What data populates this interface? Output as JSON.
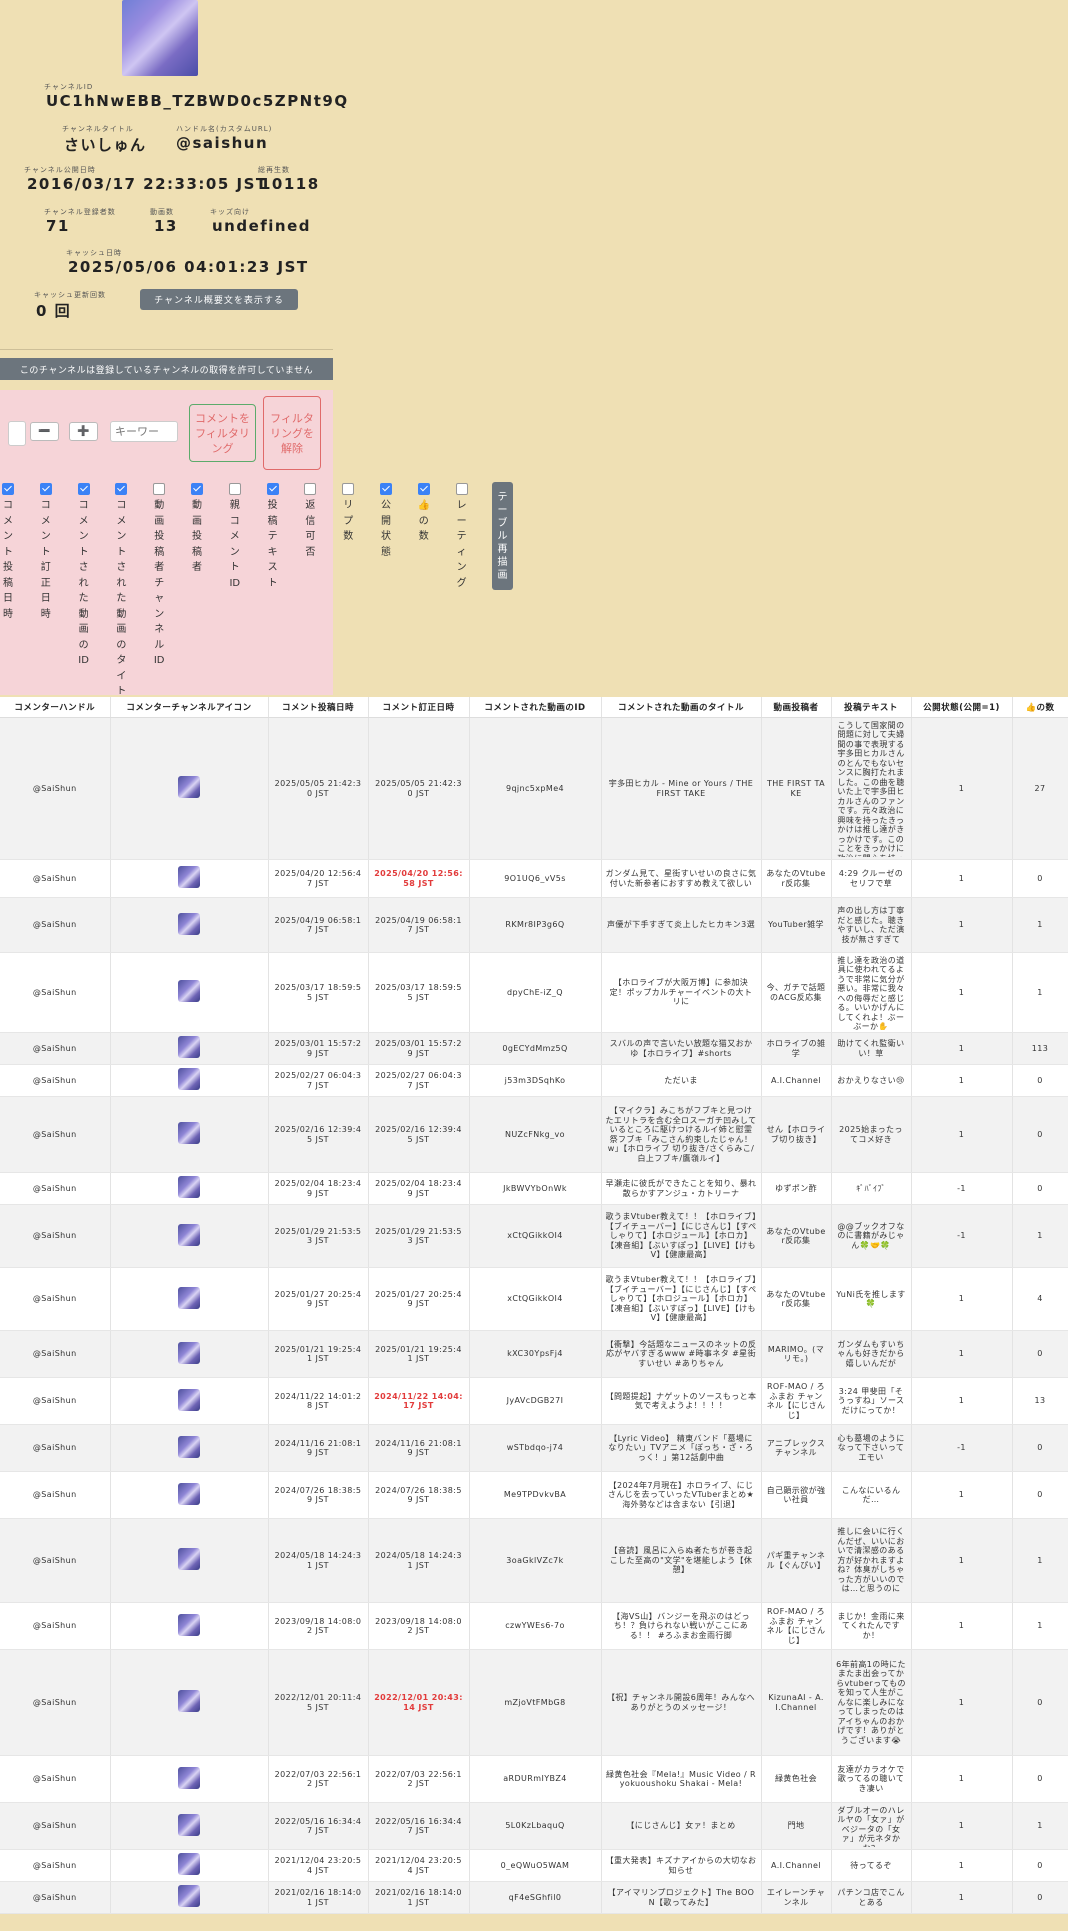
{
  "channel": {
    "id_label": "チャンネルID",
    "id": "UC1hNwEBB_TZBWD0c5ZPNt9Q",
    "title_label": "チャンネルタイトル",
    "title": "さいしゅん",
    "handle_label": "ハンドル名(カスタムURL)",
    "handle": "@saishun",
    "published_label": "チャンネル公開日時",
    "published": "2016/03/17 22:33:05 JST",
    "views_label": "総再生数",
    "views": "10118",
    "subs_label": "チャンネル登録者数",
    "subs": "71",
    "videos_label": "動画数",
    "videos": "13",
    "kids_label": "キッズ向け",
    "kids": "undefined",
    "cache_label": "キャッシュ日時",
    "cache": "2025/05/06 04:01:23 JST",
    "cache_count_label": "キャッシュ更新回数",
    "cache_count": "0 回",
    "show_desc_button": "チャンネル概要文を表示する"
  },
  "notice": "このチャンネルは登録しているチャンネルの取得を許可していません",
  "filter": {
    "minus_label": "➖",
    "plus_label": "➕",
    "keyword_placeholder": "キーワー",
    "filter_button": "コメントをフィルタリング",
    "clear_button": "フィルタリングを解除",
    "redraw_button": "テーブル再描画",
    "columns": [
      {
        "label": "コメント投稿日時",
        "checked": true
      },
      {
        "label": "コメント訂正日時",
        "checked": true
      },
      {
        "label": "コメントされた動画のID",
        "checked": true
      },
      {
        "label": "コメントされた動画のタイトル",
        "checked": true
      },
      {
        "label": "動画投稿者チャンネルID",
        "checked": false
      },
      {
        "label": "動画投稿者",
        "checked": true
      },
      {
        "label": "親コメントID",
        "checked": false
      },
      {
        "label": "投稿テキスト",
        "checked": true
      },
      {
        "label": "返信可否",
        "checked": false
      },
      {
        "label": "リプ数",
        "checked": false
      },
      {
        "label": "公開状態",
        "checked": true
      },
      {
        "label": "👍の数",
        "checked": true
      },
      {
        "label": "レーティング",
        "checked": false
      }
    ]
  },
  "table": {
    "headers": [
      "コメンターハンドル",
      "コメンターチャンネルアイコン",
      "コメント投稿日時",
      "コメント訂正日時",
      "コメントされた動画のID",
      "コメントされた動画のタイトル",
      "動画投稿者",
      "投稿テキスト",
      "公開状態(公開=1)",
      "👍の数"
    ],
    "rows": [
      {
        "handle": "@SaiShun",
        "posted": "2025/05/05 21:42:30 JST",
        "edited": "2025/05/05 21:42:30 JST",
        "edited_red": false,
        "video_id": "9qjnc5xpMe4",
        "video_title": "宇多田ヒカル - Mine or Yours / THE FIRST TAKE",
        "uploader": "THE FIRST TAKE",
        "text": "こうして国家間の問題に対して夫婦間の事で表現する宇多田ヒカルさんのとんでもないセンスに胸打たれました。この曲を聴いた上で宇多田ヒカルさんのファンです。元々政治に興味を持ったきっかけは推し達がきっかけです。このことをきっかけに政治に関心を持ってくれ！",
        "public": "1",
        "likes": "27"
      },
      {
        "handle": "@SaiShun",
        "posted": "2025/04/20 12:56:47 JST",
        "edited": "2025/04/20 12:56:58 JST",
        "edited_red": true,
        "video_id": "9O1UQ6_vV5s",
        "video_title": "ガンダム見て、星街すいせいの良さに気付いた新参者におすすめ教えて欲しい",
        "uploader": "あなたのVtuber反応集",
        "text": "4:29 クルーゼのセリフで草",
        "public": "1",
        "likes": "0"
      },
      {
        "handle": "@SaiShun",
        "posted": "2025/04/19 06:58:17 JST",
        "edited": "2025/04/19 06:58:17 JST",
        "edited_red": false,
        "video_id": "RKMr8IP3g6Q",
        "video_title": "声優が下手すぎて炎上したヒカキン3選",
        "uploader": "YouTuber雑学",
        "text": "声の出し方は丁寧だと感じた。聴きやすいし、ただ演技が無さすぎて",
        "public": "1",
        "likes": "1"
      },
      {
        "handle": "@SaiShun",
        "posted": "2025/03/17 18:59:55 JST",
        "edited": "2025/03/17 18:59:55 JST",
        "edited_red": false,
        "video_id": "dpyChE-iZ_Q",
        "video_title": "【ホロライブが大阪万博】に参加決定！ポップカルチャーイベントの大トリに",
        "uploader": "今、ガチで話題のACG反応集",
        "text": "推し達を政治の道具に使われてるようで非常に気分が悪い。非常に我々への侮辱だと感じる。いいかげんにしてくれよ！ぶーぶーか✋",
        "public": "1",
        "likes": "1"
      },
      {
        "handle": "@SaiShun",
        "posted": "2025/03/01 15:57:29 JST",
        "edited": "2025/03/01 15:57:29 JST",
        "edited_red": false,
        "video_id": "0gECYdMmz5Q",
        "video_title": "スバルの声で言いたい放題な猫又おかゆ【ホロライブ】#shorts",
        "uploader": "ホロライブの雑学",
        "text": "助けてくれ監衛いい！草",
        "public": "1",
        "likes": "113"
      },
      {
        "handle": "@SaiShun",
        "posted": "2025/02/27 06:04:37 JST",
        "edited": "2025/02/27 06:04:37 JST",
        "edited_red": false,
        "video_id": "j53m3DSqhKo",
        "video_title": "ただいま",
        "uploader": "A.I.Channel",
        "text": "おかえりなさい😢",
        "public": "1",
        "likes": "0"
      },
      {
        "handle": "@SaiShun",
        "posted": "2025/02/16 12:39:45 JST",
        "edited": "2025/02/16 12:39:45 JST",
        "edited_red": false,
        "video_id": "NUZcFNkg_vo",
        "video_title": "【マイクラ】みこちがフブキと見つけたエリトラを含む全ロスーガチ凹みしているところに駆けつけるルイ姉と慰霊祭フブキ「みこさん約束したじゃん！w」【ホロライブ 切り抜き/さくらみこ/白上フブキ/鷹嶺ルイ】",
        "uploader": "せん【ホロライブ切り抜き】",
        "text": "2025始まったってコメ好き",
        "public": "1",
        "likes": "0"
      },
      {
        "handle": "@SaiShun",
        "posted": "2025/02/04 18:23:49 JST",
        "edited": "2025/02/04 18:23:49 JST",
        "edited_red": false,
        "video_id": "JkBWVYbOnWk",
        "video_title": "早瀬走に彼氏ができたことを知り、暴れ散らかすアンジュ・カトリーナ",
        "uploader": "ゆずポン酢",
        "text": "ｷﾞﾊﾞｲﾌﾞ",
        "public": "-1",
        "likes": "0"
      },
      {
        "handle": "@SaiShun",
        "posted": "2025/01/29 21:53:53 JST",
        "edited": "2025/01/29 21:53:53 JST",
        "edited_red": false,
        "video_id": "xCtQGikkOI4",
        "video_title": "歌うまVtuber教えて！！【ホロライブ】【ブイチューバー】【にじさんじ】【すぺしゃりて】【ホロジュール】【ホロカ】【凍音組】【ぶいすぽっ】【LIVE】【けもV】【健康最高】",
        "uploader": "あなたのVtuber反応集",
        "text": "@@ブックオフなのに書籍がみじゃん🍀🤝🍀",
        "public": "-1",
        "likes": "1"
      },
      {
        "handle": "@SaiShun",
        "posted": "2025/01/27 20:25:49 JST",
        "edited": "2025/01/27 20:25:49 JST",
        "edited_red": false,
        "video_id": "xCtQGikkOI4",
        "video_title": "歌うまVtuber教えて！！【ホロライブ】【ブイチューバー】【にじさんじ】【すぺしゃりて】【ホロジュール】【ホロカ】【凍音組】【ぶいすぽっ】【LIVE】【けもV】【健康最高】",
        "uploader": "あなたのVtuber反応集",
        "text": "YuNi氏を推します🍀",
        "public": "1",
        "likes": "4"
      },
      {
        "handle": "@SaiShun",
        "posted": "2025/01/21 19:25:41 JST",
        "edited": "2025/01/21 19:25:41 JST",
        "edited_red": false,
        "video_id": "kXC30YpsFj4",
        "video_title": "【衝撃】今話題なニュースのネットの反応がヤバすぎるwww #時事ネタ #星街すいせい #ありちゃん",
        "uploader": "MARIMO。(マリモ。)",
        "text": "ガンダムもすいちゃんも好きだから嬉しいんだが",
        "public": "1",
        "likes": "0"
      },
      {
        "handle": "@SaiShun",
        "posted": "2024/11/22 14:01:28 JST",
        "edited": "2024/11/22 14:04:17 JST",
        "edited_red": true,
        "video_id": "JyAVcDGB27I",
        "video_title": "【問題提起】ナゲットのソースもっと本気で考えようよ！！！！",
        "uploader": "ROF-MAO / ろふまお チャンネル【にじさんじ】",
        "text": "3:24 甲斐田「そうっすね」ソースだけにってか！",
        "public": "1",
        "likes": "13"
      },
      {
        "handle": "@SaiShun",
        "posted": "2024/11/16 21:08:19 JST",
        "edited": "2024/11/16 21:08:19 JST",
        "edited_red": false,
        "video_id": "wSTbdqo-j74",
        "video_title": "【Lyric Video】 精東バンド「墓場になりたい」TVアニメ「ぼっち・ざ・ろっく！」第12話劇中曲",
        "uploader": "アニプレックス チャンネル",
        "text": "心も墓場のようになって下さいってエモい",
        "public": "-1",
        "likes": "0"
      },
      {
        "handle": "@SaiShun",
        "posted": "2024/07/26 18:38:59 JST",
        "edited": "2024/07/26 18:38:59 JST",
        "edited_red": false,
        "video_id": "Me9TPDvkvBA",
        "video_title": "【2024年7月現在】ホロライブ、にじさんじを去っていったVTuberまとめ★海外勢などは含まない【引退】",
        "uploader": "自己顕示欲が強い社員",
        "text": "こんなにいるんだ…",
        "public": "1",
        "likes": "0"
      },
      {
        "handle": "@SaiShun",
        "posted": "2024/05/18 14:24:31 JST",
        "edited": "2024/05/18 14:24:31 JST",
        "edited_red": false,
        "video_id": "3oaGklVZc7k",
        "video_title": "【音読】風呂に入らぬ者たちが巻き起こした至高の\"文学\"を堪能しよう【休憩】",
        "uploader": "パギ重チャンネル【ぐんぴい】",
        "text": "推しに会いに行くんだぜ、いいにおいで清潔感のある方が好かれますよね？体臭がしちゃった方がいいのでは…と思うのに",
        "public": "1",
        "likes": "1"
      },
      {
        "handle": "@SaiShun",
        "posted": "2023/09/18 14:08:02 JST",
        "edited": "2023/09/18 14:08:02 JST",
        "edited_red": false,
        "video_id": "czwYWEs6-7o",
        "video_title": "【海VS山】バンジーを飛ぶのはどっち！？負けられない戦いがここにある！！ #ろふまお金雨行脚",
        "uploader": "ROF-MAO / ろふまお チャンネル【にじさんじ】",
        "text": "まじか！金雨に来てくれたんですか！",
        "public": "1",
        "likes": "1"
      },
      {
        "handle": "@SaiShun",
        "posted": "2022/12/01 20:11:45 JST",
        "edited": "2022/12/01 20:43:14 JST",
        "edited_red": true,
        "video_id": "mZjoVtFMbG8",
        "video_title": "【祝】チャンネル開設6周年！みんなへありがとうのメッセージ！",
        "uploader": "KizunaAI - A.I.Channel",
        "text": "6年前高1の時にたまたま出会ってからvtuberってものを知って人生がこんなに楽しみになってしまったのはアイちゃんのおかげです！ありがとうございます😭",
        "public": "1",
        "likes": "0"
      },
      {
        "handle": "@SaiShun",
        "posted": "2022/07/03 22:56:12 JST",
        "edited": "2022/07/03 22:56:12 JST",
        "edited_red": false,
        "video_id": "aRDURmIYBZ4",
        "video_title": "緑黄色社会『Mela!』Music Video / Ryokuoushoku Shakai - Mela!",
        "uploader": "緑黄色社会",
        "text": "友達がカラオケで歌ってるの聴いてき凄い",
        "public": "1",
        "likes": "0"
      },
      {
        "handle": "@SaiShun",
        "posted": "2022/05/16 16:34:47 JST",
        "edited": "2022/05/16 16:34:47 JST",
        "edited_red": false,
        "video_id": "5L0KzLbaquQ",
        "video_title": "【にじさんじ】女ァ！まとめ",
        "uploader": "門地",
        "text": "ダブルオーのハレルヤの「女ァ」がベジータの「女ァ」が元ネタかな？",
        "public": "1",
        "likes": "1"
      },
      {
        "handle": "@SaiShun",
        "posted": "2021/12/04 23:20:54 JST",
        "edited": "2021/12/04 23:20:54 JST",
        "edited_red": false,
        "video_id": "0_eQWuO5WAM",
        "video_title": "【重大発表】キズナアイからの大切なお知らせ",
        "uploader": "A.I.Channel",
        "text": "待ってるぞ",
        "public": "1",
        "likes": "0"
      },
      {
        "handle": "@SaiShun",
        "posted": "2021/02/16 18:14:01 JST",
        "edited": "2021/02/16 18:14:01 JST",
        "edited_red": false,
        "video_id": "qF4eSGhfil0",
        "video_title": "【アイマリンプロジェクト】The BOON【歌ってみた】",
        "uploader": "エイレーンチャンネル",
        "text": "パチンコ店でこんとある",
        "public": "1",
        "likes": "0"
      }
    ]
  }
}
